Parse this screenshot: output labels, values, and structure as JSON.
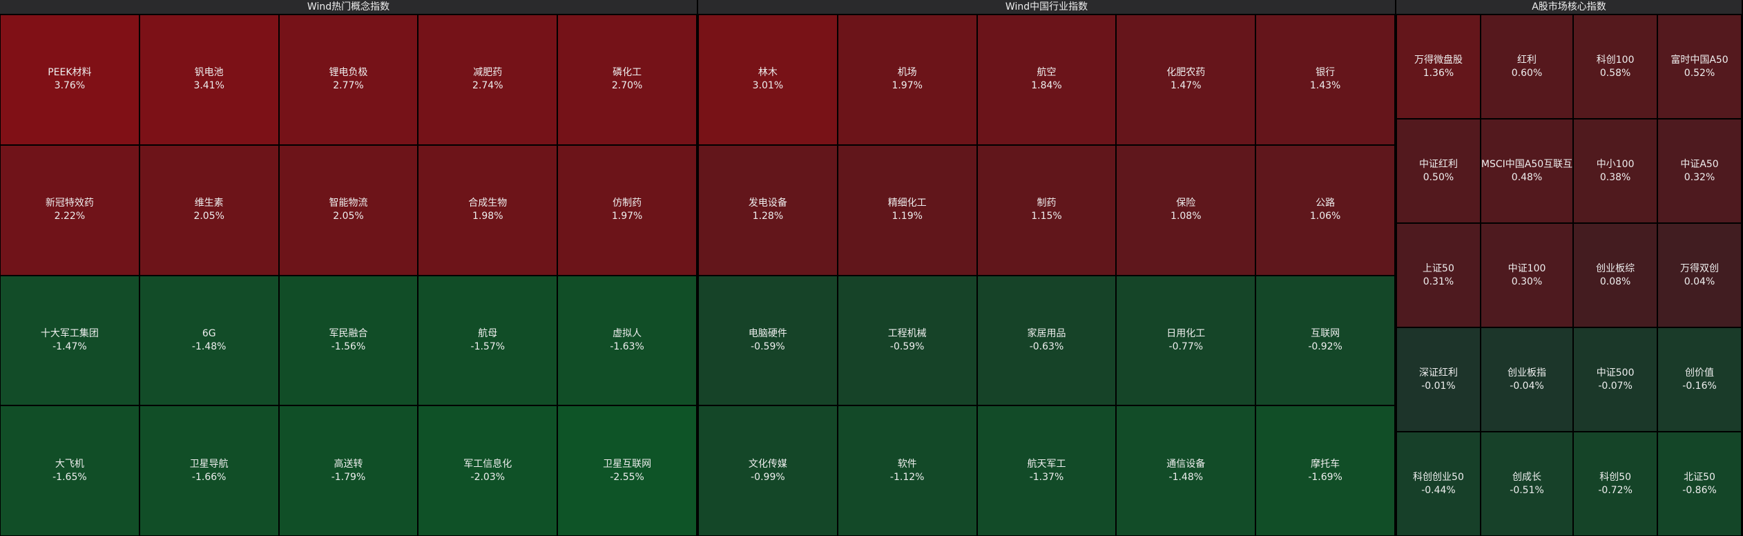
{
  "panels": [
    {
      "title": "Wind热门概念指数",
      "cols": 5,
      "tiles": [
        {
          "name": "PEEK材料",
          "change": "3.76%"
        },
        {
          "name": "钒电池",
          "change": "3.41%"
        },
        {
          "name": "锂电负极",
          "change": "2.77%"
        },
        {
          "name": "减肥药",
          "change": "2.74%"
        },
        {
          "name": "磷化工",
          "change": "2.70%"
        },
        {
          "name": "新冠特效药",
          "change": "2.22%"
        },
        {
          "name": "维生素",
          "change": "2.05%"
        },
        {
          "name": "智能物流",
          "change": "2.05%"
        },
        {
          "name": "合成生物",
          "change": "1.98%"
        },
        {
          "name": "仿制药",
          "change": "1.97%"
        },
        {
          "name": "十大军工集团",
          "change": "-1.47%"
        },
        {
          "name": "6G",
          "change": "-1.48%"
        },
        {
          "name": "军民融合",
          "change": "-1.56%"
        },
        {
          "name": "航母",
          "change": "-1.57%"
        },
        {
          "name": "虚拟人",
          "change": "-1.63%"
        },
        {
          "name": "大飞机",
          "change": "-1.65%"
        },
        {
          "name": "卫星导航",
          "change": "-1.66%"
        },
        {
          "name": "高送转",
          "change": "-1.79%"
        },
        {
          "name": "军工信息化",
          "change": "-2.03%"
        },
        {
          "name": "卫星互联网",
          "change": "-2.55%"
        }
      ]
    },
    {
      "title": "Wind中国行业指数",
      "cols": 5,
      "tiles": [
        {
          "name": "林木",
          "change": "3.01%"
        },
        {
          "name": "机场",
          "change": "1.97%"
        },
        {
          "name": "航空",
          "change": "1.84%"
        },
        {
          "name": "化肥农药",
          "change": "1.47%"
        },
        {
          "name": "银行",
          "change": "1.43%"
        },
        {
          "name": "发电设备",
          "change": "1.28%"
        },
        {
          "name": "精细化工",
          "change": "1.19%"
        },
        {
          "name": "制药",
          "change": "1.15%"
        },
        {
          "name": "保险",
          "change": "1.08%"
        },
        {
          "name": "公路",
          "change": "1.06%"
        },
        {
          "name": "电脑硬件",
          "change": "-0.59%"
        },
        {
          "name": "工程机械",
          "change": "-0.59%"
        },
        {
          "name": "家居用品",
          "change": "-0.63%"
        },
        {
          "name": "日用化工",
          "change": "-0.77%"
        },
        {
          "name": "互联网",
          "change": "-0.92%"
        },
        {
          "name": "文化传媒",
          "change": "-0.99%"
        },
        {
          "name": "软件",
          "change": "-1.12%"
        },
        {
          "name": "航天军工",
          "change": "-1.37%"
        },
        {
          "name": "通信设备",
          "change": "-1.48%"
        },
        {
          "name": "摩托车",
          "change": "-1.69%"
        }
      ]
    },
    {
      "title": "A股市场核心指数",
      "cols": 4,
      "tiles": [
        {
          "name": "万得微盘股",
          "change": "1.36%"
        },
        {
          "name": "红利",
          "change": "0.60%"
        },
        {
          "name": "科创100",
          "change": "0.58%"
        },
        {
          "name": "富时中国A50",
          "change": "0.52%"
        },
        {
          "name": "中证红利",
          "change": "0.50%"
        },
        {
          "name": "MSCI中国A50互联互",
          "change": "0.48%"
        },
        {
          "name": "中小100",
          "change": "0.38%"
        },
        {
          "name": "中证A50",
          "change": "0.32%"
        },
        {
          "name": "上证50",
          "change": "0.31%"
        },
        {
          "name": "中证100",
          "change": "0.30%"
        },
        {
          "name": "创业板综",
          "change": "0.08%"
        },
        {
          "name": "万得双创",
          "change": "0.04%"
        },
        {
          "name": "深证红利",
          "change": "-0.01%"
        },
        {
          "name": "创业板指",
          "change": "-0.04%"
        },
        {
          "name": "中证500",
          "change": "-0.07%"
        },
        {
          "name": "创价值",
          "change": "-0.16%"
        },
        {
          "name": "科创创业50",
          "change": "-0.44%"
        },
        {
          "name": "创成长",
          "change": "-0.51%"
        },
        {
          "name": "科创50",
          "change": "-0.72%"
        },
        {
          "name": "北证50",
          "change": "-0.86%"
        }
      ]
    }
  ]
}
